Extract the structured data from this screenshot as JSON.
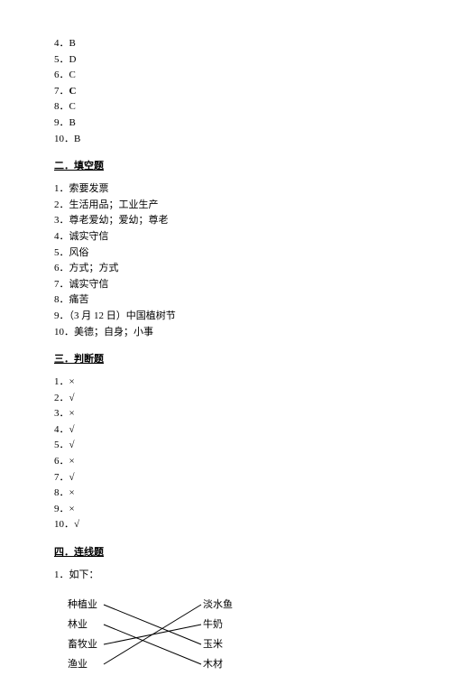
{
  "section1": {
    "answers": [
      {
        "num": "4",
        "val": "B",
        "bold": false
      },
      {
        "num": "5",
        "val": "D",
        "bold": false
      },
      {
        "num": "6",
        "val": "C",
        "bold": false
      },
      {
        "num": "7",
        "val": "C",
        "bold": true
      },
      {
        "num": "8",
        "val": "C",
        "bold": false
      },
      {
        "num": "9",
        "val": "B",
        "bold": false
      },
      {
        "num": "10",
        "val": "B",
        "bold": false
      }
    ]
  },
  "section2": {
    "header": "二．填空题",
    "answers": [
      "1．索要发票",
      "2．生活用品；工业生产",
      "3．尊老爱幼；爱幼；尊老",
      "4．诚实守信",
      "5．风俗",
      "6．方式；方式",
      "7．诚实守信",
      "8．痛苦",
      "9．（3 月 12 日）中国植树节",
      "10．美德；自身；小事"
    ]
  },
  "section3": {
    "header": "三．判断题",
    "answers": [
      "1．×",
      "2．√",
      "3．×",
      "4．√",
      "5．√",
      "6．×",
      "7．√",
      "8．×",
      "9．×",
      "10．√"
    ]
  },
  "section4": {
    "header": "四．连线题",
    "intro": "1．如下：",
    "left": [
      "种植业",
      "林业",
      "畜牧业",
      "渔业"
    ],
    "right": [
      "淡水鱼",
      "牛奶",
      "玉米",
      "木材"
    ],
    "lines": [
      {
        "from": 0,
        "to": 2
      },
      {
        "from": 1,
        "to": 3
      },
      {
        "from": 2,
        "to": 1
      },
      {
        "from": 3,
        "to": 0
      }
    ],
    "line_color": "#000000"
  }
}
